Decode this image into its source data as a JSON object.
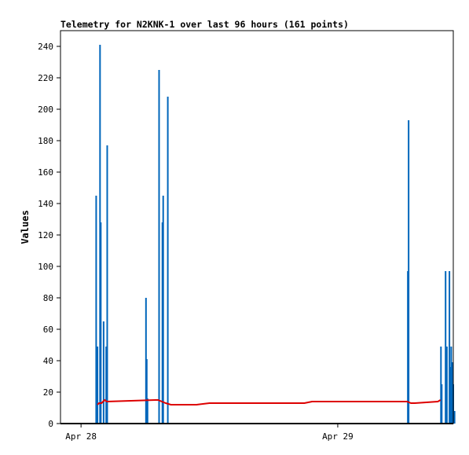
{
  "chart_data": {
    "type": "bar",
    "title": "Telemetry for N2KNK-1 over last 96 hours (161 points)",
    "xlabel": "",
    "ylabel": "Values",
    "ylim": [
      0,
      250
    ],
    "xlim": [
      -0.08,
      1.45
    ],
    "x_unit": "days since Apr 28 00:00",
    "yticks": [
      0,
      20,
      40,
      60,
      80,
      100,
      120,
      140,
      160,
      180,
      200,
      220,
      240
    ],
    "xticks": [
      {
        "x": 0,
        "label": "Apr 28"
      },
      {
        "x": 1,
        "label": "Apr 29"
      }
    ],
    "grid": false,
    "legend": "none",
    "colors": {
      "bars": "#0066bb",
      "line": "#dd0000",
      "baseline": "#000000",
      "frame": "#000000"
    },
    "series": [
      {
        "type": "bar",
        "x": [
          0.059,
          0.064,
          0.074,
          0.077,
          0.088,
          0.098,
          0.102,
          0.253,
          0.256,
          0.259,
          0.304,
          0.317,
          0.32,
          0.338,
          1.273,
          1.276,
          1.402,
          1.405,
          1.42,
          1.425,
          1.435,
          1.438,
          1.442,
          1.447,
          1.45,
          1.455
        ],
        "values": [
          145,
          49,
          241,
          128,
          65,
          49,
          177,
          80,
          41,
          16,
          225,
          128,
          145,
          208,
          97,
          193,
          49,
          25,
          97,
          49,
          97,
          36,
          49,
          39,
          25,
          8
        ]
      },
      {
        "type": "line",
        "x": [
          0.064,
          0.07,
          0.08,
          0.092,
          0.1,
          0.29,
          0.3,
          0.315,
          0.33,
          0.35,
          0.45,
          0.5,
          0.68,
          0.7,
          0.87,
          0.9,
          1.1,
          1.14,
          1.27,
          1.285,
          1.3,
          1.39,
          1.4
        ],
        "values": [
          12,
          13,
          13,
          15,
          14,
          15,
          15,
          14,
          13,
          12,
          12,
          13,
          13,
          13,
          13,
          14,
          14,
          14,
          14,
          13,
          13,
          14,
          15
        ]
      }
    ]
  }
}
